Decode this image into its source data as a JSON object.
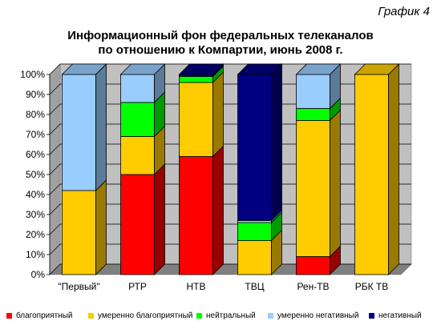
{
  "corner_label": "График 4",
  "chart_data": {
    "type": "bar",
    "stacked": true,
    "title_lines": [
      "Информационный фон федеральных телеканалов",
      "по отношению к Компартии, июнь 2008 г."
    ],
    "categories": [
      "\"Первый\"",
      "РТР",
      "НТВ",
      "ТВЦ",
      "Рен-ТВ",
      "РБК ТВ"
    ],
    "y_ticks": [
      "0%",
      "10%",
      "20%",
      "30%",
      "40%",
      "50%",
      "60%",
      "70%",
      "80%",
      "90%",
      "100%"
    ],
    "ylim": [
      0,
      100
    ],
    "grid": true,
    "legend_position": "bottom",
    "series": [
      {
        "name": "благоприятный",
        "color": "#ff0000",
        "values": [
          0,
          50,
          59,
          0,
          9,
          0
        ]
      },
      {
        "name": "умеренно благоприятный",
        "color": "#ffcc00",
        "values": [
          42,
          19,
          37,
          17,
          68,
          100
        ]
      },
      {
        "name": "нейтральный",
        "color": "#00ff00",
        "values": [
          0,
          17,
          3,
          9,
          6,
          0
        ]
      },
      {
        "name": "умеренно негативный",
        "color": "#99ccff",
        "values": [
          58,
          14,
          0,
          1,
          17,
          0
        ]
      },
      {
        "name": "негативный",
        "color": "#000080",
        "values": [
          0,
          0,
          1,
          73,
          0,
          0
        ]
      }
    ]
  }
}
